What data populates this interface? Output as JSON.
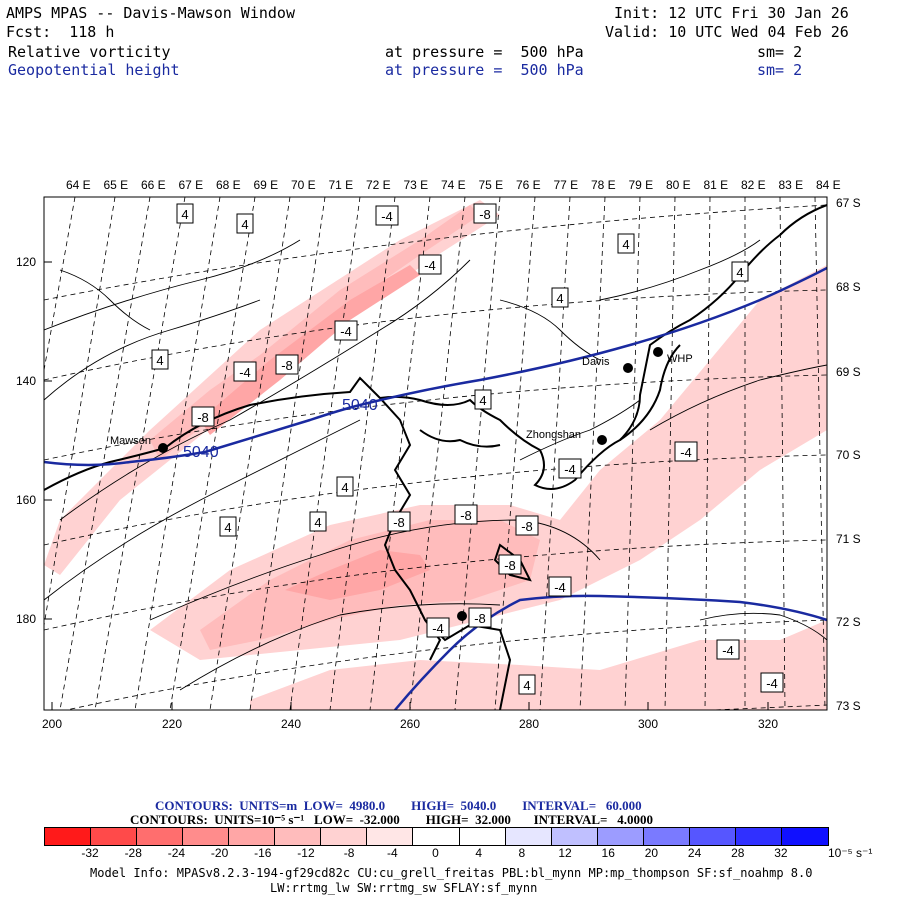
{
  "header": {
    "model_title": "AMPS MPAS -- Davis-Mawson Window",
    "forecast": "Fcst:  118 h",
    "init": "Init: 12 UTC Fri 30 Jan 26",
    "valid": "Valid: 10 UTC Wed 04 Feb 26",
    "field1_name": "Relative vorticity",
    "field1_level": "at pressure =  500 hPa",
    "field1_sm": "sm= 2",
    "field2_name": "Geopotential height",
    "field2_level": "at pressure =  500 hPa",
    "field2_sm": "sm= 2"
  },
  "map": {
    "lon_labels": [
      "64 E",
      "65 E",
      "66 E",
      "67 E",
      "68 E",
      "69 E",
      "70 E",
      "71 E",
      "72 E",
      "73 E",
      "74 E",
      "75 E",
      "76 E",
      "77 E",
      "78 E",
      "79 E",
      "80 E",
      "81 E",
      "82 E",
      "83 E",
      "84 E"
    ],
    "lat_labels": [
      "67 S",
      "68 S",
      "69 S",
      "70 S",
      "71 S",
      "72 S",
      "73 S"
    ],
    "y_ticks": [
      "120",
      "140",
      "160",
      "180"
    ],
    "x_ticks": [
      "200",
      "220",
      "240",
      "260",
      "280",
      "300",
      "320"
    ],
    "stations": [
      "Mawson",
      "Davis",
      "WHP",
      "Zhongshan"
    ],
    "height_labels": [
      "5040",
      "5040"
    ],
    "vorticity_labels": [
      "4",
      "4",
      "-4",
      "-8",
      "-4",
      "4",
      "4",
      "4",
      "-4",
      "-4",
      "-8",
      "-8",
      "4",
      "-8",
      "4",
      "-4",
      "-4",
      "4",
      "4",
      "4",
      "-8",
      "-8",
      "-8",
      "-8",
      "-4",
      "-4",
      "-4",
      "-4",
      "4"
    ]
  },
  "legend": {
    "contours_height": "CONTOURS:  UNITS=m  LOW=  4980.0        HIGH=  5040.0        INTERVAL=   60.000",
    "contours_vort": "CONTOURS:  UNITS=10⁻⁵ s⁻¹   LOW=  -32.000        HIGH=  32.000       INTERVAL=   4.0000",
    "colorbar_labels": [
      "-32",
      "-28",
      "-24",
      "-20",
      "-16",
      "-12",
      "-8",
      "-4",
      "0",
      "4",
      "8",
      "12",
      "16",
      "20",
      "24",
      "28",
      "32"
    ],
    "colorbar_unit": "10⁻⁵ s⁻¹",
    "colorbar_colors": [
      "#ff1a1a",
      "#ff4a4a",
      "#ff6e6e",
      "#ff8c8c",
      "#ffa6a6",
      "#ffbcbc",
      "#ffd2d2",
      "#ffe6e6",
      "#ffffff",
      "#ffffff",
      "#e6e6ff",
      "#c0c0ff",
      "#9c9cff",
      "#7a7aff",
      "#5656ff",
      "#3030ff",
      "#1010ff"
    ]
  },
  "footer": {
    "line1": "Model Info: MPASv8.2.3-194-gf29cd82c CU:cu_grell_freitas PBL:bl_mynn MP:mp_thompson SF:sf_noahmp 8.0",
    "line2": "LW:rrtmg_lw SW:rrtmg_sw SFLAY:sf_mynn"
  }
}
